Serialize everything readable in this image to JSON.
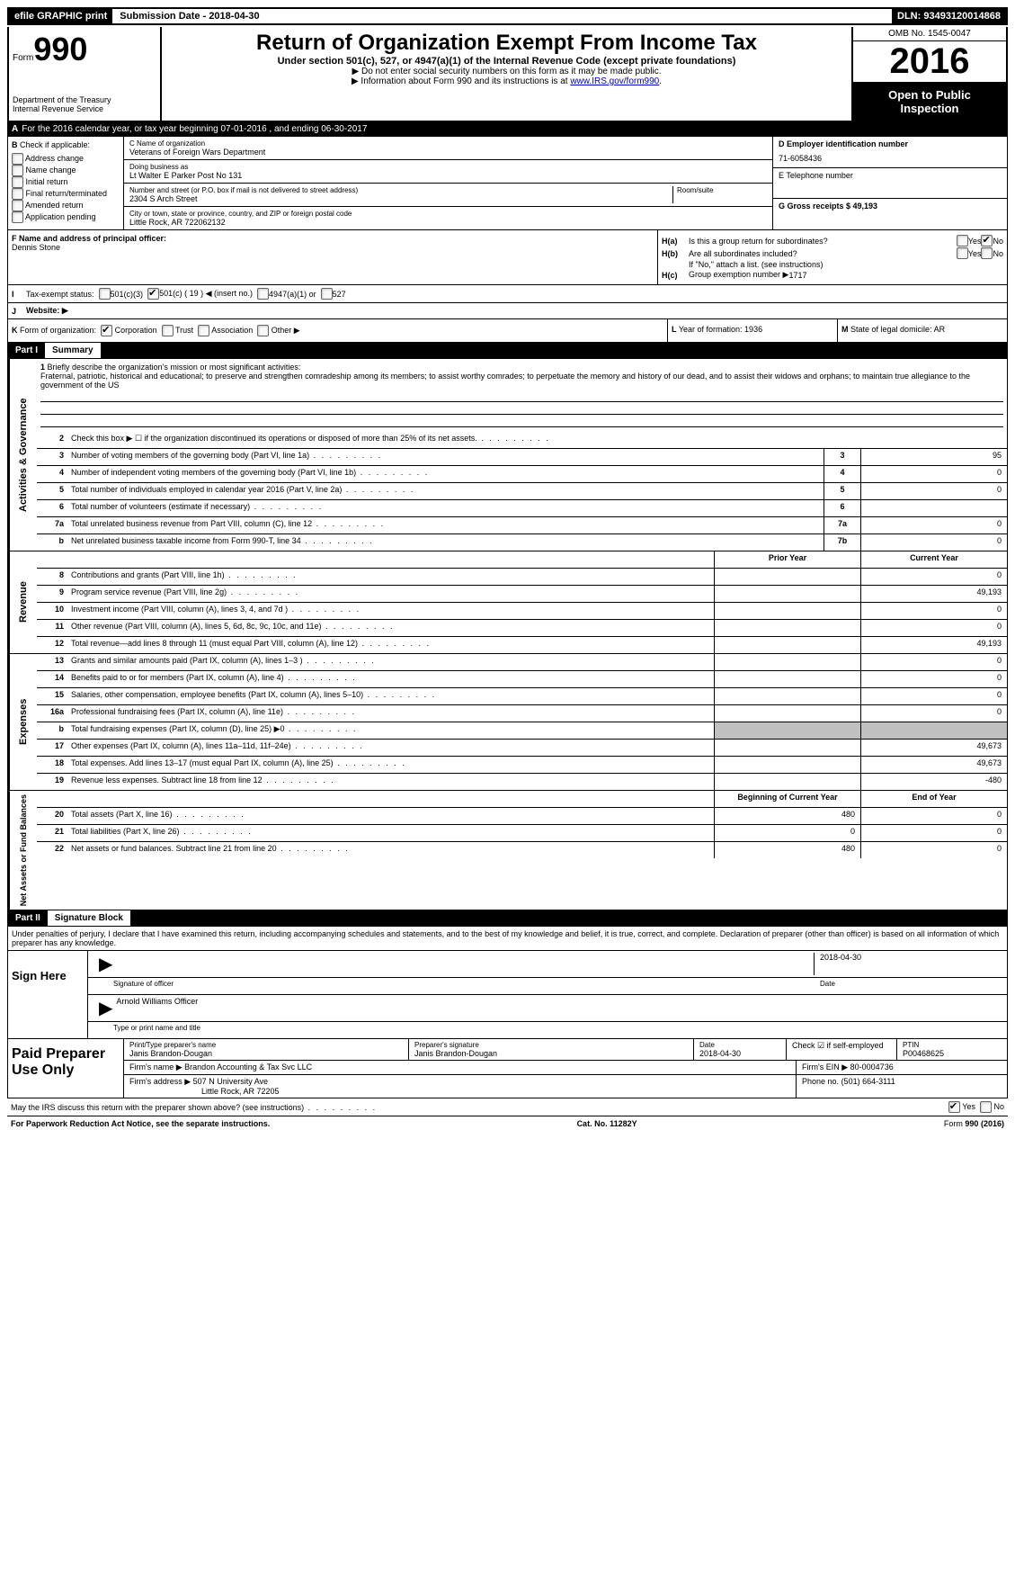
{
  "topbar": {
    "efile": "efile GRAPHIC print",
    "submission": "Submission Date - 2018-04-30",
    "dln": "DLN: 93493120014868"
  },
  "header": {
    "form_prefix": "Form",
    "form_num": "990",
    "dept1": "Department of the Treasury",
    "dept2": "Internal Revenue Service",
    "title": "Return of Organization Exempt From Income Tax",
    "subtitle": "Under section 501(c), 527, or 4947(a)(1) of the Internal Revenue Code (except private foundations)",
    "note1": "▶ Do not enter social security numbers on this form as it may be made public.",
    "note2_pre": "▶ Information about Form 990 and its instructions is at ",
    "note2_link": "www.IRS.gov/form990",
    "omb": "OMB No. 1545-0047",
    "year": "2016",
    "open1": "Open to Public",
    "open2": "Inspection"
  },
  "rowA": {
    "text": "For the 2016 calendar year, or tax year beginning 07-01-2016     , and ending 06-30-2017"
  },
  "B": {
    "title": "Check if applicable:",
    "items": [
      "Address change",
      "Name change",
      "Initial return",
      "Final return/terminated",
      "Amended return",
      "Application pending"
    ]
  },
  "C": {
    "name_label": "C Name of organization",
    "name": "Veterans of Foreign Wars Department",
    "dba_label": "Doing business as",
    "dba": "Lt Walter E Parker Post No 131",
    "addr_label": "Number and street (or P.O. box if mail is not delivered to street address)",
    "addr": "2304 S Arch Street",
    "room_label": "Room/suite",
    "city_label": "City or town, state or province, country, and ZIP or foreign postal code",
    "city": "Little Rock, AR   722062132"
  },
  "D": {
    "label": "D Employer identification number",
    "value": "71-6058436"
  },
  "E": {
    "label": "E Telephone number",
    "value": ""
  },
  "G": {
    "label": "G Gross receipts $ 49,193"
  },
  "F": {
    "label": "F  Name and address of principal officer:",
    "name": "Dennis Stone"
  },
  "H": {
    "a": "Is this a group return for subordinates?",
    "b": "Are all subordinates included?",
    "b_note": "If \"No,\" attach a list. (see instructions)",
    "c_label": "Group exemption number ▶",
    "c_val": "1717",
    "yes": "Yes",
    "no": "No"
  },
  "I": {
    "label": "Tax-exempt status:",
    "opts": [
      "501(c)(3)",
      "501(c) ( 19 ) ◀ (insert no.)",
      "4947(a)(1) or",
      "527"
    ]
  },
  "J": {
    "label": "Website: ▶"
  },
  "K": {
    "label": "Form of organization:",
    "opts": [
      "Corporation",
      "Trust",
      "Association",
      "Other ▶"
    ]
  },
  "L": {
    "label": "Year of formation: 1936"
  },
  "M": {
    "label": "State of legal domicile: AR"
  },
  "part1": {
    "label": "Part I",
    "title": "Summary"
  },
  "part2": {
    "label": "Part II",
    "title": "Signature Block"
  },
  "mission": {
    "label": "Briefly describe the organization's mission or most significant activities:",
    "text": "Fraternal, patriotic, historical and educational; to preserve and strengthen comradeship among its members; to assist worthy comrades; to perpetuate the memory and history of our dead, and to assist their widows and orphans; to maintain true allegiance to the government of the US"
  },
  "lines_gov": [
    {
      "n": "2",
      "d": "Check this box ▶ ☐  if the organization discontinued its operations or disposed of more than 25% of its net assets.",
      "c": "",
      "v": ""
    },
    {
      "n": "3",
      "d": "Number of voting members of the governing body (Part VI, line 1a)",
      "c": "3",
      "v": "95"
    },
    {
      "n": "4",
      "d": "Number of independent voting members of the governing body (Part VI, line 1b)",
      "c": "4",
      "v": "0"
    },
    {
      "n": "5",
      "d": "Total number of individuals employed in calendar year 2016 (Part V, line 2a)",
      "c": "5",
      "v": "0"
    },
    {
      "n": "6",
      "d": "Total number of volunteers (estimate if necessary)",
      "c": "6",
      "v": ""
    },
    {
      "n": "7a",
      "d": "Total unrelated business revenue from Part VIII, column (C), line 12",
      "c": "7a",
      "v": "0"
    },
    {
      "n": "b",
      "d": "Net unrelated business taxable income from Form 990-T, line 34",
      "c": "7b",
      "v": "0"
    }
  ],
  "col_headers": {
    "prior": "Prior Year",
    "current": "Current Year",
    "boy": "Beginning of Current Year",
    "eoy": "End of Year"
  },
  "lines_rev": [
    {
      "n": "8",
      "d": "Contributions and grants (Part VIII, line 1h)",
      "p": "",
      "c": "0"
    },
    {
      "n": "9",
      "d": "Program service revenue (Part VIII, line 2g)",
      "p": "",
      "c": "49,193"
    },
    {
      "n": "10",
      "d": "Investment income (Part VIII, column (A), lines 3, 4, and 7d )",
      "p": "",
      "c": "0"
    },
    {
      "n": "11",
      "d": "Other revenue (Part VIII, column (A), lines 5, 6d, 8c, 9c, 10c, and 11e)",
      "p": "",
      "c": "0"
    },
    {
      "n": "12",
      "d": "Total revenue—add lines 8 through 11 (must equal Part VIII, column (A), line 12)",
      "p": "",
      "c": "49,193"
    }
  ],
  "lines_exp": [
    {
      "n": "13",
      "d": "Grants and similar amounts paid (Part IX, column (A), lines 1–3 )",
      "p": "",
      "c": "0"
    },
    {
      "n": "14",
      "d": "Benefits paid to or for members (Part IX, column (A), line 4)",
      "p": "",
      "c": "0"
    },
    {
      "n": "15",
      "d": "Salaries, other compensation, employee benefits (Part IX, column (A), lines 5–10)",
      "p": "",
      "c": "0"
    },
    {
      "n": "16a",
      "d": "Professional fundraising fees (Part IX, column (A), line 11e)",
      "p": "",
      "c": "0"
    },
    {
      "n": "b",
      "d": "Total fundraising expenses (Part IX, column (D), line 25) ▶0",
      "p": "shaded",
      "c": "shaded"
    },
    {
      "n": "17",
      "d": "Other expenses (Part IX, column (A), lines 11a–11d, 11f–24e)",
      "p": "",
      "c": "49,673"
    },
    {
      "n": "18",
      "d": "Total expenses. Add lines 13–17 (must equal Part IX, column (A), line 25)",
      "p": "",
      "c": "49,673"
    },
    {
      "n": "19",
      "d": "Revenue less expenses. Subtract line 18 from line 12",
      "p": "",
      "c": "-480"
    }
  ],
  "lines_net": [
    {
      "n": "20",
      "d": "Total assets (Part X, line 16)",
      "p": "480",
      "c": "0"
    },
    {
      "n": "21",
      "d": "Total liabilities (Part X, line 26)",
      "p": "0",
      "c": "0"
    },
    {
      "n": "22",
      "d": "Net assets or fund balances. Subtract line 21 from line 20",
      "p": "480",
      "c": "0"
    }
  ],
  "vlabels": {
    "gov": "Activities & Governance",
    "rev": "Revenue",
    "exp": "Expenses",
    "net": "Net Assets or\nFund Balances"
  },
  "sig": {
    "perjury": "Under penalties of perjury, I declare that I have examined this return, including accompanying schedules and statements, and to the best of my knowledge and belief, it is true, correct, and complete. Declaration of preparer (other than officer) is based on all information of which preparer has any knowledge.",
    "sign_here": "Sign Here",
    "sig_officer": "Signature of officer",
    "date": "Date",
    "date_val": "2018-04-30",
    "name": "Arnold Williams  Officer",
    "name_label": "Type or print name and title"
  },
  "prep": {
    "title": "Paid Preparer Use Only",
    "name_label": "Print/Type preparer's name",
    "name": "Janis Brandon-Dougan",
    "sig_label": "Preparer's signature",
    "sig": "Janis Brandon-Dougan",
    "pdate_label": "Date",
    "pdate": "2018-04-30",
    "check_label": "Check ☑ if self-employed",
    "ptin_label": "PTIN",
    "ptin": "P00468625",
    "firm_name_label": "Firm's name   ▶",
    "firm_name": "Brandon Accounting & Tax Svc LLC",
    "firm_ein_label": "Firm's EIN ▶",
    "firm_ein": "80-0004736",
    "firm_addr_label": "Firm's address ▶",
    "firm_addr1": "507 N University Ave",
    "firm_addr2": "Little Rock, AR  72205",
    "phone_label": "Phone no.",
    "phone": "(501) 664-3111"
  },
  "footer": {
    "discuss": "May the IRS discuss this return with the preparer shown above? (see instructions)",
    "yes": "Yes",
    "no": "No",
    "pra": "For Paperwork Reduction Act Notice, see the separate instructions.",
    "cat": "Cat. No. 11282Y",
    "form": "Form 990 (2016)"
  }
}
